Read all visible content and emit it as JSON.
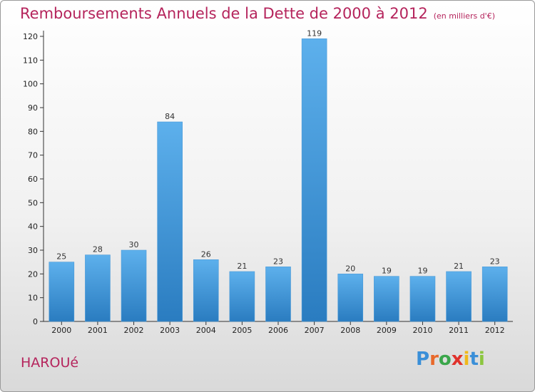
{
  "header": {
    "title": "Remboursements Annuels de la Dette de 2000 à 2012",
    "unit": "(en milliers d'€)"
  },
  "commune": "HAROUé",
  "logo": {
    "letters": [
      "P",
      "r",
      "o",
      "x",
      "i",
      "t",
      "i"
    ],
    "colors": [
      "#3a8fd8",
      "#e8682a",
      "#3aa64a",
      "#e0322c",
      "#f0b81a",
      "#3a8fd8",
      "#8cc63f"
    ]
  },
  "colors": {
    "bar_top": "#5db0ec",
    "bar_bottom": "#2a7cc0",
    "title": "#b5245c"
  },
  "chart_data": {
    "type": "bar",
    "title": "Remboursements Annuels de la Dette de 2000 à 2012",
    "xlabel": "",
    "ylabel": "",
    "categories": [
      "2000",
      "2001",
      "2002",
      "2003",
      "2004",
      "2005",
      "2006",
      "2007",
      "2008",
      "2009",
      "2010",
      "2011",
      "2012"
    ],
    "values": [
      25,
      28,
      30,
      84,
      26,
      21,
      23,
      119,
      20,
      19,
      19,
      21,
      23
    ],
    "ylim": [
      0,
      120
    ],
    "yticks": [
      0,
      10,
      20,
      30,
      40,
      50,
      60,
      70,
      80,
      90,
      100,
      110,
      120
    ],
    "grid": false,
    "data_labels": true
  }
}
